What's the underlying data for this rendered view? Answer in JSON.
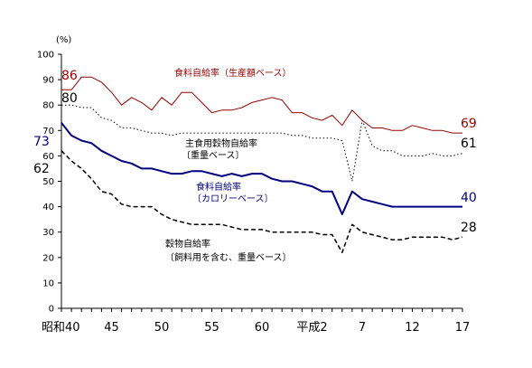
{
  "chart_data": {
    "type": "line",
    "unit": "(%)",
    "ylim": [
      0,
      100
    ],
    "y_ticks": [
      0,
      10,
      20,
      30,
      40,
      50,
      60,
      70,
      80,
      90,
      100
    ],
    "x_tick_labels": [
      "昭和40",
      "45",
      "50",
      "55",
      "60",
      "平成2",
      "7",
      "12",
      "17"
    ],
    "x_tick_years": [
      1965,
      1970,
      1975,
      1980,
      1985,
      1990,
      1995,
      2000,
      2005
    ],
    "years": [
      1965,
      1966,
      1967,
      1968,
      1969,
      1970,
      1971,
      1972,
      1973,
      1974,
      1975,
      1976,
      1977,
      1978,
      1979,
      1980,
      1981,
      1982,
      1983,
      1984,
      1985,
      1986,
      1987,
      1988,
      1989,
      1990,
      1991,
      1992,
      1993,
      1994,
      1995,
      1996,
      1997,
      1998,
      1999,
      2000,
      2001,
      2002,
      2003,
      2004,
      2005
    ],
    "grid": false,
    "series": [
      {
        "key": "food_production",
        "name": "食料自給率（生産額ベース）",
        "color": "#990000",
        "style": "solid",
        "width": 1,
        "start_label": "86",
        "end_label": "69",
        "values": [
          86,
          86,
          91,
          91,
          89,
          85,
          80,
          83,
          81,
          78,
          83,
          80,
          85,
          85,
          81,
          77,
          78,
          78,
          79,
          81,
          82,
          83,
          82,
          77,
          77,
          75,
          74,
          76,
          72,
          78,
          74,
          71,
          71,
          70,
          70,
          72,
          71,
          70,
          70,
          69,
          69
        ]
      },
      {
        "key": "grain_staple",
        "name_lines": [
          "主食用穀物自給率",
          "〔重量ベース〕"
        ],
        "color": "#000000",
        "style": "dotted",
        "width": 1,
        "start_label": "80",
        "end_label": "61",
        "values": [
          80,
          80,
          79,
          79,
          75,
          74,
          71,
          71,
          70,
          69,
          69,
          68,
          69,
          69,
          69,
          69,
          69,
          69,
          69,
          69,
          69,
          69,
          69,
          68,
          68,
          67,
          67,
          67,
          66,
          50,
          74,
          64,
          62,
          62,
          60,
          60,
          60,
          61,
          60,
          60,
          61
        ]
      },
      {
        "key": "food_calorie",
        "name_lines": [
          "食料自給率",
          "〔カロリーベース〕"
        ],
        "color": "#000080",
        "style": "solid",
        "width": 2,
        "start_label": "73",
        "end_label": "40",
        "values": [
          73,
          68,
          66,
          65,
          62,
          60,
          58,
          57,
          55,
          55,
          54,
          53,
          53,
          54,
          54,
          53,
          52,
          53,
          52,
          53,
          53,
          51,
          50,
          50,
          49,
          48,
          46,
          46,
          37,
          46,
          43,
          42,
          41,
          40,
          40,
          40,
          40,
          40,
          40,
          40,
          40
        ]
      },
      {
        "key": "grain_feed",
        "name_lines": [
          "穀物自給率",
          "〔飼料用を含む、重量ベース〕"
        ],
        "color": "#000000",
        "style": "dashed",
        "width": 1.5,
        "start_label": "62",
        "end_label": "28",
        "values": [
          62,
          58,
          55,
          51,
          46,
          45,
          41,
          40,
          40,
          40,
          37,
          35,
          34,
          33,
          33,
          33,
          33,
          32,
          31,
          31,
          31,
          30,
          30,
          30,
          30,
          30,
          29,
          29,
          22,
          33,
          30,
          29,
          28,
          27,
          27,
          28,
          28,
          28,
          28,
          27,
          28
        ]
      }
    ]
  }
}
